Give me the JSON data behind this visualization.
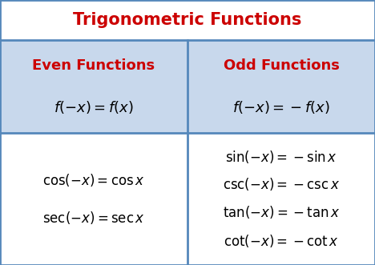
{
  "title": "Trigonometric Functions",
  "title_color": "#CC0000",
  "header_bg": "#C8D8EC",
  "header_left": "Even Functions",
  "header_right": "Odd Functions",
  "header_color": "#CC0000",
  "body_bg": "#FFFFFF",
  "border_color": "#5588BB",
  "title_bg": "#FFFFFF",
  "fig_width": 4.68,
  "fig_height": 3.31,
  "dpi": 100
}
